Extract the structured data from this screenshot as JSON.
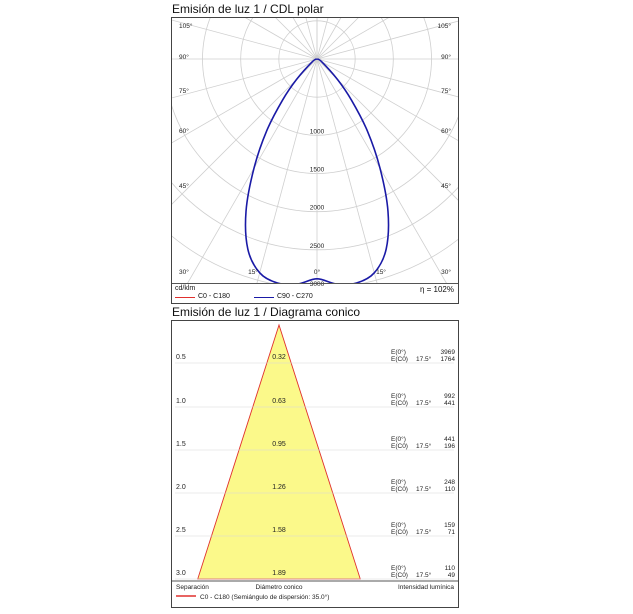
{
  "polar_title": "Emisión de luz 1 / CDL polar",
  "cone_title": "Emisión de luz 1 / Diagrama conico",
  "polar_legend": {
    "unit": "cd/klm",
    "efficiency": "η = 102%",
    "series": [
      {
        "name": "C0 - C180",
        "color": "#e0302e"
      },
      {
        "name": "C90 - C270",
        "color": "#1a1aa6"
      }
    ]
  },
  "cone_legend": {
    "col1": "Separación",
    "col2": "Diámetro conico",
    "col3": "Intensidad lumínica",
    "series": "C0 - C180 (Semiángulo de dispersión: 35.0°)",
    "color": "#e0302e"
  },
  "chart_data": [
    {
      "type": "polar",
      "title": "Emisión de luz 1 / CDL polar",
      "unit": "cd/klm",
      "angle_ticks_left": [
        "105°",
        "90°",
        "75°",
        "60°",
        "45°",
        "30°"
      ],
      "angle_ticks_right": [
        "105°",
        "90°",
        "75°",
        "60°",
        "45°",
        "30°"
      ],
      "angle_ticks_bottom": [
        "15°",
        "0°",
        "15°"
      ],
      "radial_ticks": [
        1000,
        1500,
        2000,
        2500,
        3000
      ],
      "rmax": 3000,
      "series": [
        {
          "name": "C90 - C270",
          "angles": [
            0,
            5,
            10,
            15,
            20,
            25,
            30,
            35,
            40,
            45,
            60,
            90
          ],
          "values": [
            2880,
            2960,
            2980,
            2900,
            2650,
            2200,
            1650,
            1150,
            700,
            380,
            70,
            0
          ]
        }
      ],
      "efficiency": "η = 102%"
    },
    {
      "type": "table",
      "title": "Emisión de luz 1 / Diagrama conico",
      "half_angle": "35.0°",
      "rows": [
        {
          "separation": "0.5",
          "diameter": "0.32",
          "label1": "E(0°)",
          "label2": "E(C0)",
          "angle": "17.5°",
          "e0": "3969",
          "ec0": "1764"
        },
        {
          "separation": "1.0",
          "diameter": "0.63",
          "label1": "E(0°)",
          "label2": "E(C0)",
          "angle": "17.5°",
          "e0": "992",
          "ec0": "441"
        },
        {
          "separation": "1.5",
          "diameter": "0.95",
          "label1": "E(0°)",
          "label2": "E(C0)",
          "angle": "17.5°",
          "e0": "441",
          "ec0": "196"
        },
        {
          "separation": "2.0",
          "diameter": "1.26",
          "label1": "E(0°)",
          "label2": "E(C0)",
          "angle": "17.5°",
          "e0": "248",
          "ec0": "110"
        },
        {
          "separation": "2.5",
          "diameter": "1.58",
          "label1": "E(0°)",
          "label2": "E(C0)",
          "angle": "17.5°",
          "e0": "159",
          "ec0": "71"
        },
        {
          "separation": "3.0",
          "diameter": "1.89",
          "label1": "E(0°)",
          "label2": "E(C0)",
          "angle": "17.5°",
          "e0": "110",
          "ec0": "49"
        }
      ]
    }
  ]
}
